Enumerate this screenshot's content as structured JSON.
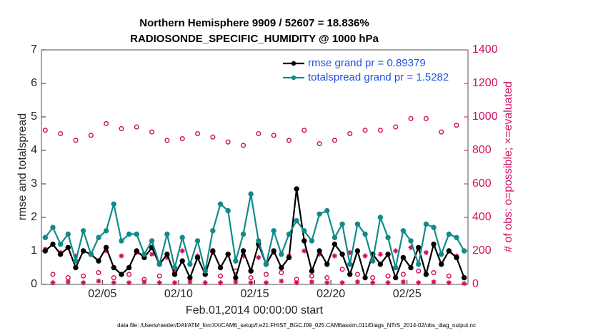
{
  "chart_data": {
    "type": "line",
    "title": "Northern Hemisphere 9909 / 52607 = 18.836%",
    "subtitle": "RADIOSONDE_SPECIFIC_HUMIDITY @ 1000 hPa",
    "xlabel": "Feb.01,2014 00:00:00 start",
    "ylabel": "rmse and totalspread",
    "y2label": "# of obs: o=possible; ×=evaluated",
    "footnote": "data file: /Users/raeder/DAI/ATM_forcXX/CAM6_setup/f.e21.FHIST_BGC.f09_025.CAM6assim.011/Diags_NTrS_2014-02/obs_diag_output.nc",
    "legend": "upper right",
    "xlim": [
      0,
      28
    ],
    "xticks": [
      {
        "value": 4,
        "label": "02/05"
      },
      {
        "value": 9,
        "label": "02/10"
      },
      {
        "value": 14,
        "label": "02/15"
      },
      {
        "value": 19,
        "label": "02/20"
      },
      {
        "value": 24,
        "label": "02/25"
      }
    ],
    "ylim": [
      0,
      7
    ],
    "yticks": [
      0,
      1,
      2,
      3,
      4,
      5,
      6,
      7
    ],
    "y2lim": [
      0,
      1400
    ],
    "y2ticks": [
      0,
      200,
      400,
      600,
      800,
      1000,
      1200,
      1400
    ],
    "x": [
      0.25,
      0.75,
      1.25,
      1.75,
      2.25,
      2.75,
      3.25,
      3.75,
      4.25,
      4.75,
      5.25,
      5.75,
      6.25,
      6.75,
      7.25,
      7.75,
      8.25,
      8.75,
      9.25,
      9.75,
      10.25,
      10.75,
      11.25,
      11.75,
      12.25,
      12.75,
      13.25,
      13.75,
      14.25,
      14.75,
      15.25,
      15.75,
      16.25,
      16.75,
      17.25,
      17.75,
      18.25,
      18.75,
      19.25,
      19.75,
      20.25,
      20.75,
      21.25,
      21.75,
      22.25,
      22.75,
      23.25,
      23.75,
      24.25,
      24.75,
      25.25,
      25.75,
      26.25,
      26.75,
      27.25,
      27.75
    ],
    "series": [
      {
        "name": "rmse grand pr = 0.89379",
        "color": "#000000",
        "marker": "dot",
        "values": [
          1.0,
          1.2,
          0.9,
          1.1,
          0.5,
          1.0,
          0.9,
          0.7,
          1.1,
          0.5,
          0.3,
          0.5,
          1.0,
          0.8,
          1.1,
          0.6,
          0.9,
          0.3,
          0.7,
          0.2,
          0.8,
          0.3,
          1.0,
          0.5,
          0.9,
          0.2,
          1.0,
          0.4,
          1.2,
          0.6,
          1.0,
          0.5,
          0.8,
          2.85,
          1.3,
          0.4,
          1.0,
          0.6,
          1.2,
          0.9,
          0.3,
          1.0,
          0.2,
          0.9,
          0.6,
          0.9,
          0.2,
          0.8,
          0.5,
          1.1,
          0.3,
          1.2,
          0.6,
          1.0,
          0.8,
          0.2
        ]
      },
      {
        "name": "totalspread grand pr = 1.5282",
        "color": "#138a8a",
        "marker": "dot",
        "values": [
          1.4,
          1.7,
          1.2,
          1.5,
          0.7,
          1.6,
          0.9,
          1.4,
          1.6,
          2.4,
          1.3,
          1.5,
          1.5,
          0.9,
          1.3,
          0.6,
          1.5,
          0.5,
          1.4,
          0.6,
          1.3,
          0.4,
          1.6,
          2.4,
          2.2,
          0.7,
          1.5,
          2.7,
          1.3,
          0.6,
          1.6,
          0.9,
          1.5,
          1.9,
          1.6,
          1.3,
          2.1,
          2.2,
          1.4,
          1.8,
          0.6,
          1.8,
          1.5,
          0.7,
          2.0,
          1.4,
          0.5,
          1.6,
          1.3,
          0.6,
          1.8,
          1.7,
          0.9,
          1.5,
          1.4,
          1.0
        ]
      },
      {
        "color": "#d0115f",
        "marker": "circle",
        "axis": "y2",
        "values": [
          920,
          60,
          900,
          40,
          860,
          50,
          890,
          70,
          960,
          40,
          930,
          60,
          940,
          30,
          910,
          50,
          860,
          70,
          870,
          40,
          900,
          60,
          880,
          50,
          850,
          80,
          830,
          40,
          900,
          60,
          890,
          70,
          860,
          30,
          920,
          50,
          840,
          40,
          860,
          90,
          900,
          60,
          920,
          40,
          920,
          50,
          940,
          60,
          990,
          80,
          990,
          70,
          910,
          50,
          950,
          40
        ]
      },
      {
        "color": "#d0115f",
        "marker": "asterisk",
        "axis": "y2",
        "values": [
          210,
          10,
          190,
          15,
          170,
          10,
          180,
          20,
          200,
          10,
          170,
          10,
          190,
          15,
          180,
          10,
          160,
          10,
          200,
          15,
          170,
          10,
          190,
          10,
          180,
          15,
          170,
          10,
          160,
          10,
          190,
          20,
          170,
          10,
          200,
          15,
          180,
          10,
          170,
          10,
          190,
          15,
          170,
          10,
          180,
          10,
          200,
          15,
          220,
          10,
          190,
          15,
          180,
          10,
          170,
          5
        ]
      }
    ]
  }
}
